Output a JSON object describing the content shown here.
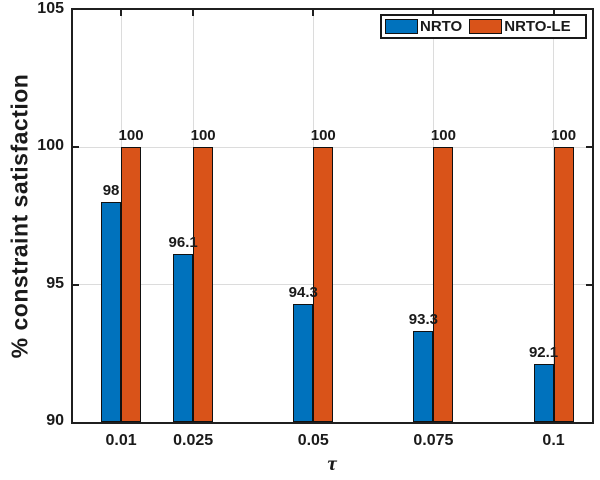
{
  "chart_data": {
    "type": "bar",
    "title": "",
    "xlabel": "τ",
    "ylabel": "% constraint satisfaction",
    "categories": [
      "0.01",
      "0.025",
      "0.05",
      "0.075",
      "0.1"
    ],
    "x_values": [
      0.01,
      0.025,
      0.05,
      0.075,
      0.1
    ],
    "series": [
      {
        "name": "NRTO",
        "color": "#0072BD",
        "values": [
          98,
          96.1,
          94.3,
          93.3,
          92.1
        ],
        "labels": [
          "98",
          "96.1",
          "94.3",
          "93.3",
          "92.1"
        ]
      },
      {
        "name": "NRTO-LE",
        "color": "#D95319",
        "values": [
          100,
          100,
          100,
          100,
          100
        ],
        "labels": [
          "100",
          "100",
          "100",
          "100",
          "100"
        ]
      }
    ],
    "ylim": [
      90,
      105
    ],
    "yticks": [
      90,
      95,
      100,
      105
    ],
    "ytick_labels": [
      "90",
      "95",
      "100",
      "105"
    ],
    "xlim": [
      0,
      0.108
    ],
    "grid": true,
    "legend_position": "top-right"
  },
  "axes_style": {
    "frame_color": "#1F1F1F",
    "grid_color": "#DCDCDC",
    "text_color": "#1A1A1A",
    "bar_edge_color": "#111111"
  }
}
